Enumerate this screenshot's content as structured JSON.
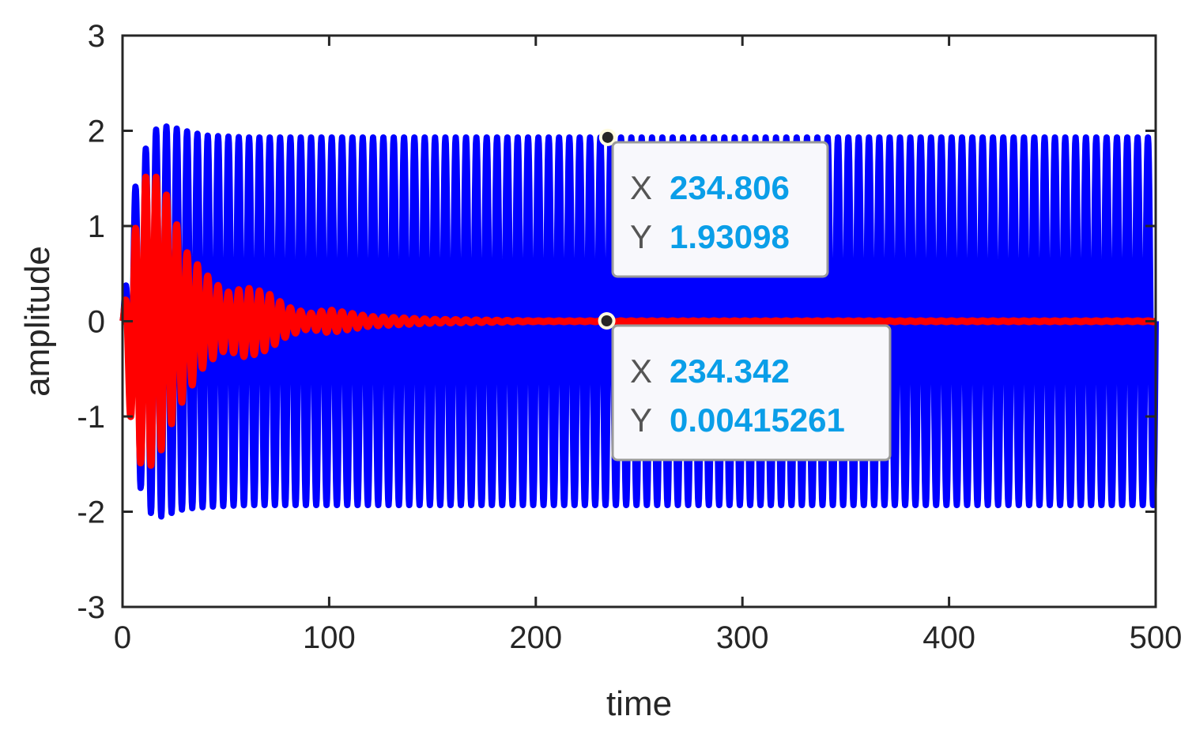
{
  "chart_data": {
    "type": "line",
    "title": "",
    "xlabel": "time",
    "ylabel": "amplitude",
    "xlim": [
      0,
      500
    ],
    "ylim": [
      -3,
      3
    ],
    "xticks": [
      "0",
      "100",
      "200",
      "300",
      "400",
      "500"
    ],
    "yticks": [
      "3",
      "2",
      "1",
      "0",
      "-1",
      "-2",
      "-3"
    ],
    "grid": false,
    "legend": "none",
    "series": [
      {
        "color": "#0000ff",
        "description_points": {
          "x": [
            0,
            5,
            10,
            15,
            20,
            25,
            30,
            40,
            60,
            100,
            200,
            300,
            400,
            500
          ],
          "upper": [
            0.0,
            1.3,
            1.75,
            2.0,
            2.05,
            2.03,
            2.0,
            1.95,
            1.93,
            1.93,
            1.93,
            1.93,
            1.93,
            1.93
          ],
          "lower": [
            0.0,
            -1.3,
            -1.9,
            -2.05,
            -2.05,
            -2.0,
            -1.97,
            -1.95,
            -1.93,
            -1.93,
            -1.93,
            -1.93,
            -1.93,
            -1.93
          ]
        },
        "period": 5.0
      },
      {
        "color": "#ff0000",
        "description_points": {
          "x": [
            0,
            5,
            10,
            15,
            20,
            25,
            30,
            40,
            50,
            60,
            70,
            80,
            90,
            100,
            120,
            150,
            200,
            300,
            400,
            500
          ],
          "upper": [
            0.0,
            0.8,
            1.5,
            1.55,
            1.4,
            1.1,
            0.75,
            0.5,
            0.3,
            0.35,
            0.3,
            0.15,
            0.08,
            0.12,
            0.05,
            0.02,
            0.004,
            0.004,
            0.004,
            0.004
          ],
          "lower": [
            0.0,
            -1.3,
            -1.55,
            -1.5,
            -1.3,
            -1.0,
            -0.8,
            -0.45,
            -0.3,
            -0.38,
            -0.3,
            -0.15,
            -0.08,
            -0.12,
            -0.05,
            -0.02,
            -0.004,
            -0.004,
            -0.004,
            -0.004
          ]
        },
        "period": 5.0
      }
    ],
    "datatips": [
      {
        "x": 234.806,
        "y": 1.93098,
        "x_label": "X",
        "y_label": "Y",
        "x_text": "234.806",
        "y_text": "1.93098"
      },
      {
        "x": 234.342,
        "y": 0.00415261,
        "x_label": "X",
        "y_label": "Y",
        "x_text": "234.342",
        "y_text": "0.00415261"
      }
    ]
  }
}
